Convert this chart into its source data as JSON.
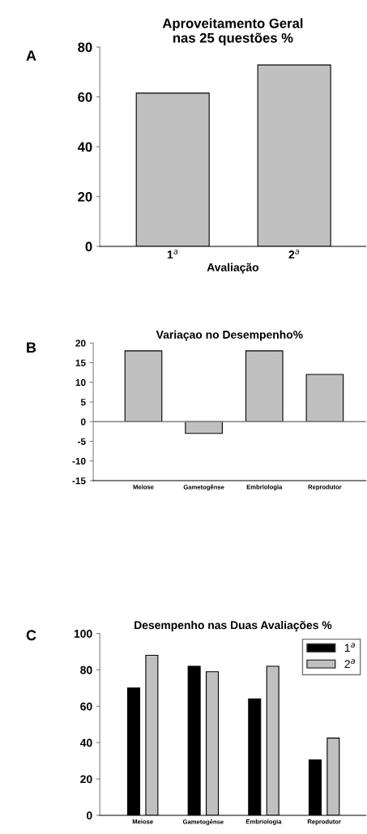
{
  "chart_data": [
    {
      "type": "bar",
      "title": "Aproveitamento Geral\nnas 25 questões %",
      "xlabel": "Avaliação",
      "categories": [
        "1$^{a}$",
        "2$^{a}$"
      ],
      "values": [
        61.5,
        72.8
      ],
      "color": "#c0c0c0",
      "ylim": [
        0,
        80
      ],
      "yticks": [
        0,
        20,
        40,
        60,
        80
      ],
      "grid": false,
      "legend": false,
      "annotations": [
        "A"
      ]
    },
    {
      "type": "bar",
      "title": "Variaçao no Desempenho%",
      "categories": [
        "Meiose",
        "Gametogênse",
        "Embriologia",
        "Reprodutor"
      ],
      "values": [
        18,
        -3,
        18,
        12
      ],
      "color": "#c0c0c0",
      "ylim": [
        -15,
        20
      ],
      "yticks": [
        -15,
        -10,
        -5,
        0,
        5,
        10,
        15,
        20
      ],
      "ref_lines": [
        {
          "axis": "y",
          "value": 0,
          "color": "#808080"
        }
      ],
      "grid": false,
      "legend": false,
      "annotations": [
        "B"
      ]
    },
    {
      "type": "bar",
      "title": "Desempenho nas Duas Avaliações %",
      "categories": [
        "Meiose",
        "Gametogênse",
        "Embriologia",
        "Reprodutor"
      ],
      "series": [
        {
          "name": "1$^{a}$",
          "color": "#000000",
          "values": [
            70,
            82,
            64,
            30.5
          ]
        },
        {
          "name": "2$^{a}$",
          "color": "#c0c0c0",
          "values": [
            88,
            79,
            82,
            42.5
          ]
        }
      ],
      "ylim": [
        0,
        100
      ],
      "yticks": [
        0,
        20,
        40,
        60,
        80,
        100
      ],
      "grid": false,
      "legend": "top right",
      "annotations": [
        "C"
      ]
    }
  ]
}
